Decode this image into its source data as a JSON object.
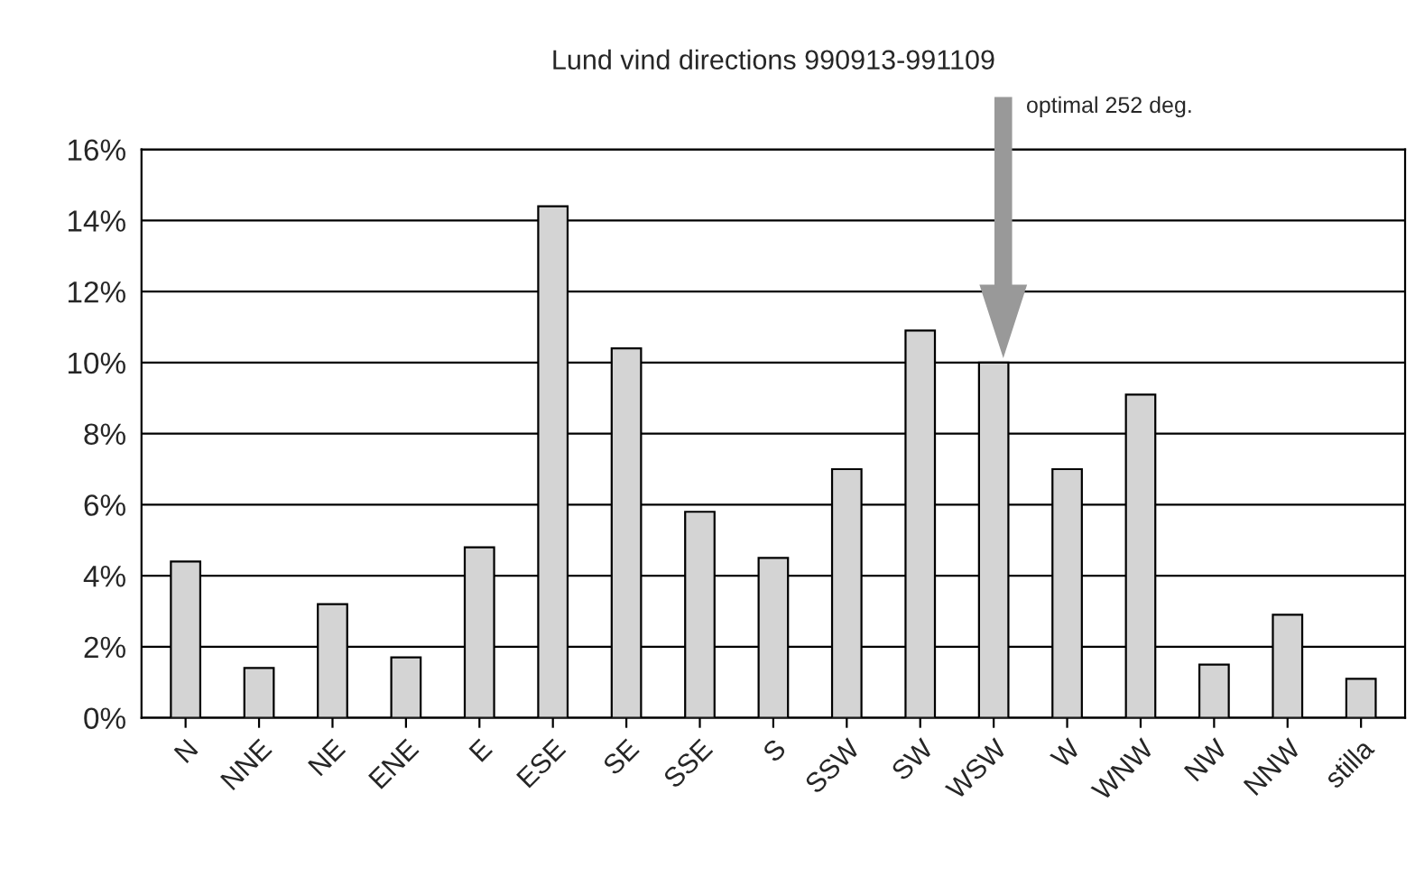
{
  "chart_data": {
    "type": "bar",
    "title": "Lund vind directions 990913-991109",
    "categories": [
      "N",
      "NNE",
      "NE",
      "ENE",
      "E",
      "ESE",
      "SE",
      "SSE",
      "S",
      "SSW",
      "SW",
      "WSW",
      "W",
      "WNW",
      "NW",
      "NNW",
      "stilla"
    ],
    "values": [
      4.4,
      1.4,
      3.2,
      1.7,
      4.8,
      14.4,
      10.4,
      5.8,
      4.5,
      7.0,
      10.9,
      10.0,
      7.0,
      9.1,
      1.5,
      2.9,
      1.1
    ],
    "color": "#d4d4d4",
    "ylim": [
      0,
      16
    ],
    "yticks": [
      {
        "value": 0,
        "label": "0%"
      },
      {
        "value": 2,
        "label": "2%"
      },
      {
        "value": 4,
        "label": "4%"
      },
      {
        "value": 6,
        "label": "6%"
      },
      {
        "value": 8,
        "label": "8%"
      },
      {
        "value": 10,
        "label": "10%"
      },
      {
        "value": 12,
        "label": "12%"
      },
      {
        "value": 14,
        "label": "14%"
      },
      {
        "value": 16,
        "label": "16%"
      }
    ],
    "grid": "y",
    "annotations": [
      "optimal 252 deg."
    ]
  }
}
